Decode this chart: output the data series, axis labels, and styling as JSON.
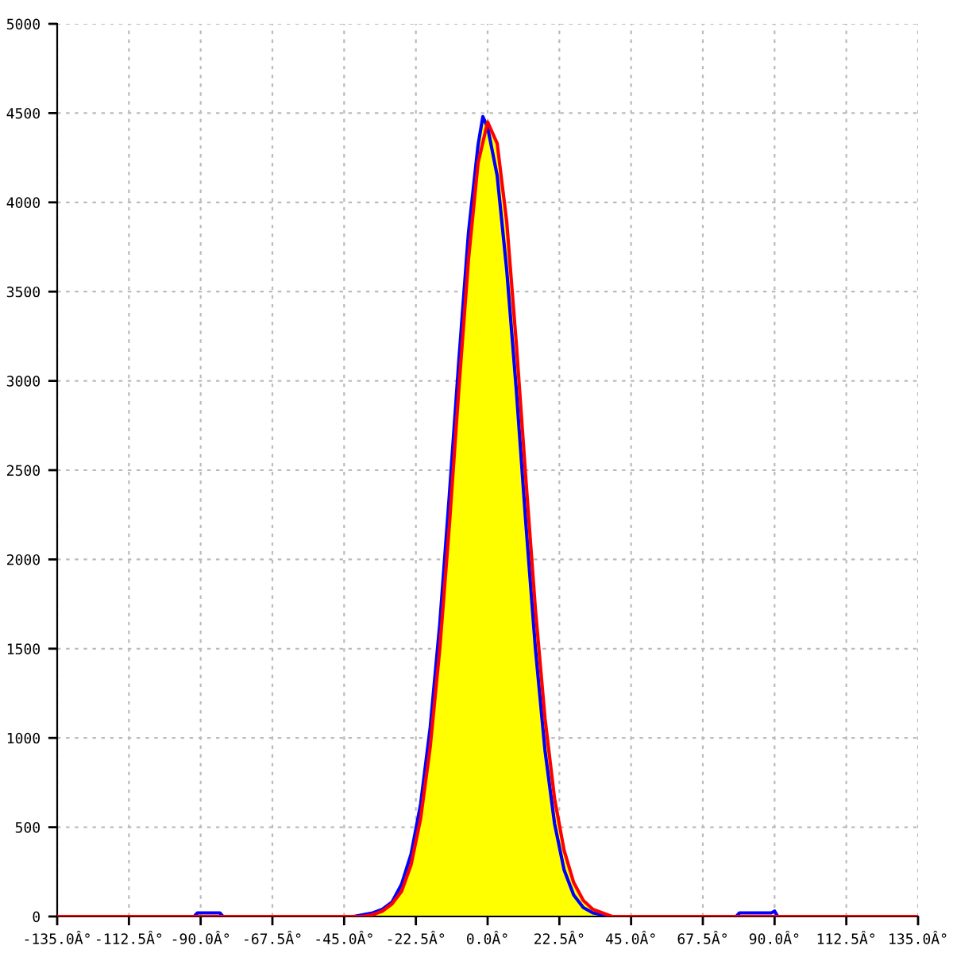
{
  "chart_data": {
    "type": "line",
    "xlim": [
      -135,
      135
    ],
    "ylim": [
      0,
      5000
    ],
    "xticks": [
      {
        "value": -135,
        "label": "-135.0Â°"
      },
      {
        "value": -112.5,
        "label": "-112.5Â°"
      },
      {
        "value": -90,
        "label": "-90.0Â°"
      },
      {
        "value": -67.5,
        "label": "-67.5Â°"
      },
      {
        "value": -45,
        "label": "-45.0Â°"
      },
      {
        "value": -22.5,
        "label": "-22.5Â°"
      },
      {
        "value": 0,
        "label": "0.0Â°"
      },
      {
        "value": 22.5,
        "label": "22.5Â°"
      },
      {
        "value": 45,
        "label": "45.0Â°"
      },
      {
        "value": 67.5,
        "label": "67.5Â°"
      },
      {
        "value": 90,
        "label": "90.0Â°"
      },
      {
        "value": 112.5,
        "label": "112.5Â°"
      },
      {
        "value": 135,
        "label": "135.0Â°"
      }
    ],
    "yticks": [
      0,
      500,
      1000,
      1500,
      2000,
      2500,
      3000,
      3500,
      4000,
      4500,
      5000
    ],
    "grid": true,
    "legend": false,
    "marker": "none",
    "line_style": "solid",
    "series": [
      {
        "type": "area",
        "color": "#ffff00",
        "x": [
          -45,
          -42,
          -39,
          -36,
          -33,
          -30,
          -27,
          -24,
          -21,
          -18,
          -15,
          -12,
          -9,
          -6,
          -3,
          -1.5,
          0,
          3,
          6,
          9,
          12,
          15,
          18,
          21,
          24,
          27,
          30,
          33,
          36,
          39,
          42,
          45
        ],
        "values": [
          0,
          0,
          10,
          20,
          40,
          80,
          180,
          350,
          630,
          1060,
          1640,
          2360,
          3120,
          3830,
          4320,
          4480,
          4450,
          4330,
          3890,
          3210,
          2450,
          1720,
          1110,
          660,
          370,
          190,
          90,
          40,
          20,
          10,
          0,
          0
        ]
      },
      {
        "color": "#0000ff",
        "x": [
          -135,
          -92,
          -91,
          -84,
          -83,
          -45,
          -42,
          -39,
          -36,
          -33,
          -30,
          -27,
          -24,
          -21,
          -18,
          -15,
          -12,
          -9,
          -6,
          -3,
          -1.5,
          0,
          3,
          6,
          9,
          12,
          15,
          18,
          21,
          24,
          27,
          30,
          33,
          36,
          39,
          42,
          45,
          78,
          79,
          89,
          90,
          91,
          135
        ],
        "values": [
          0,
          0,
          20,
          20,
          0,
          0,
          0,
          10,
          20,
          40,
          80,
          180,
          350,
          630,
          1060,
          1640,
          2360,
          3120,
          3830,
          4320,
          4480,
          4420,
          4150,
          3620,
          2950,
          2200,
          1500,
          930,
          520,
          260,
          120,
          50,
          20,
          10,
          0,
          0,
          0,
          0,
          20,
          20,
          30,
          0,
          0
        ]
      },
      {
        "color": "#ff0000",
        "x": [
          -135,
          -45,
          -42,
          -39,
          -36,
          -33,
          -30,
          -27,
          -24,
          -21,
          -18,
          -15,
          -12,
          -9,
          -6,
          -3,
          0,
          3,
          6,
          9,
          12,
          15,
          18,
          21,
          24,
          27,
          30,
          33,
          36,
          39,
          42,
          45,
          135
        ],
        "values": [
          0,
          0,
          0,
          0,
          10,
          30,
          70,
          140,
          290,
          550,
          950,
          1500,
          2190,
          2960,
          3680,
          4220,
          4450,
          4330,
          3890,
          3210,
          2450,
          1720,
          1110,
          660,
          370,
          190,
          90,
          40,
          20,
          0,
          0,
          0,
          0
        ]
      }
    ]
  }
}
